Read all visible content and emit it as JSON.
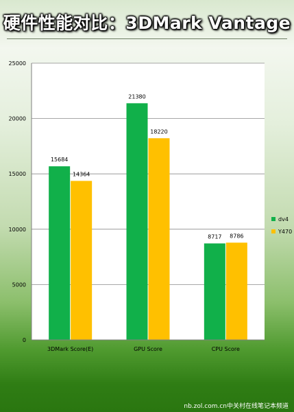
{
  "header": {
    "title": "硬件性能对比：3DMark Vantage"
  },
  "footer": {
    "credit": "nb.zol.com.cn中关村在线笔记本频道"
  },
  "chart_data": {
    "type": "bar",
    "categories": [
      "3DMark Score(E)",
      "GPU Score",
      "CPU Score"
    ],
    "series": [
      {
        "name": "dv4",
        "values": [
          15684,
          21380,
          8717
        ],
        "color": "#11b04a"
      },
      {
        "name": "Y470",
        "values": [
          14364,
          18220,
          8786
        ],
        "color": "#ffc000"
      }
    ],
    "ylim": [
      0,
      25000
    ],
    "yticks": [
      0,
      5000,
      10000,
      15000,
      20000,
      25000
    ],
    "grid": true,
    "legend": "right"
  }
}
